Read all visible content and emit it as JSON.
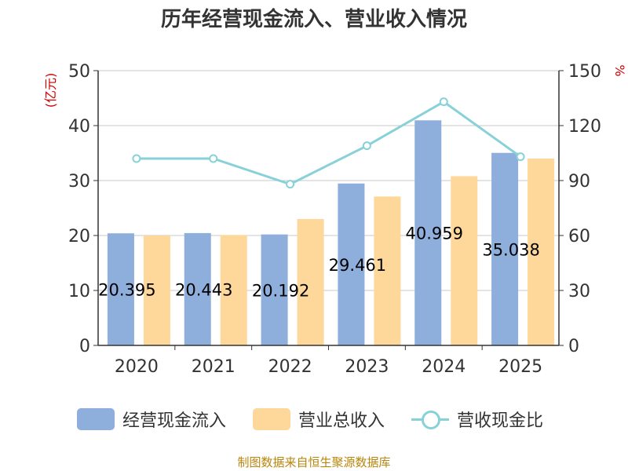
{
  "chart_data": {
    "type": "bar",
    "title": "历年经营现金流入、营业收入情况",
    "categories": [
      "2020",
      "2021",
      "2022",
      "2023",
      "2024",
      "2025"
    ],
    "y_left": {
      "unit": "(亿元)",
      "ylim": [
        0,
        50
      ],
      "ticks": [
        0,
        10,
        20,
        30,
        40,
        50
      ]
    },
    "y_right": {
      "unit": "%",
      "ylim": [
        0,
        150
      ],
      "ticks": [
        0,
        30,
        60,
        90,
        120,
        150
      ]
    },
    "series": [
      {
        "name": "经营现金流入",
        "type": "bar",
        "axis": "left",
        "color": "#8eaedc",
        "values": [
          20.395,
          20.443,
          20.192,
          29.461,
          40.959,
          35.038
        ],
        "labels": [
          "20.395",
          "20.443",
          "20.192",
          "29.461",
          "40.959",
          "35.038"
        ]
      },
      {
        "name": "营业总收入",
        "type": "bar",
        "axis": "left",
        "color": "#fdd89a",
        "values": [
          20.0,
          20.1,
          23.0,
          27.1,
          30.8,
          34.0
        ]
      },
      {
        "name": "营收现金比",
        "type": "line",
        "axis": "right",
        "color": "#88d1d8",
        "values": [
          102,
          102,
          88,
          109,
          133,
          103
        ]
      }
    ],
    "grid": true,
    "legend_position": "bottom"
  },
  "footer": "制图数据来自恒生聚源数据库"
}
